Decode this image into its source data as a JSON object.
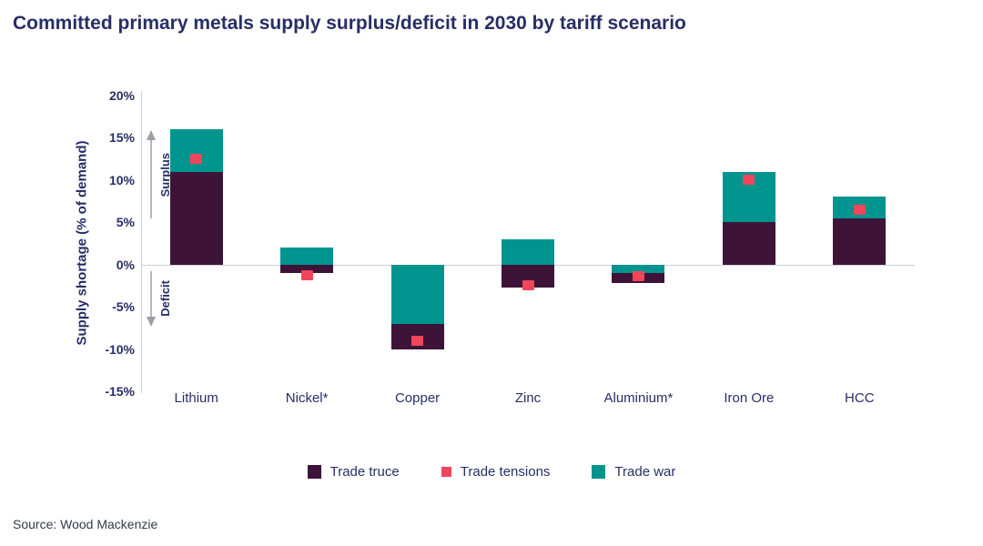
{
  "source_text": "Source: Wood Mackenzie",
  "colors": {
    "trade_truce": "#3d1438",
    "trade_tensions": "#f0465a",
    "trade_war": "#00948e",
    "title_text": "#272e66",
    "arrow_gray": "#9b9fa8"
  },
  "chart_data": {
    "type": "bar",
    "title": "Committed primary metals supply surplus/deficit in 2030 by tariff scenario",
    "ylabel": "Supply shortage (% of demand)",
    "ylim": [
      -15,
      20
    ],
    "yticks": [
      {
        "value": 20,
        "label": "20%"
      },
      {
        "value": 15,
        "label": "15%"
      },
      {
        "value": 10,
        "label": "10%"
      },
      {
        "value": 5,
        "label": "5%"
      },
      {
        "value": 0,
        "label": "0%"
      },
      {
        "value": -5,
        "label": "-5%"
      },
      {
        "value": -10,
        "label": "-10%"
      },
      {
        "value": -15,
        "label": "-15%"
      }
    ],
    "categories": [
      "Lithium",
      "Nickel*",
      "Copper",
      "Zinc",
      "Aluminium*",
      "Iron Ore",
      "HCC"
    ],
    "series": [
      {
        "name": "Trade truce",
        "color": "#3d1438",
        "style": "bar",
        "values": [
          11,
          -1,
          -10,
          -2.7,
          -2.2,
          5,
          5.5
        ]
      },
      {
        "name": "Trade tensions",
        "color": "#f0465a",
        "style": "marker",
        "values": [
          12.5,
          -1.3,
          -9,
          -2.5,
          -1.4,
          10,
          6.5
        ]
      },
      {
        "name": "Trade war",
        "color": "#00948e",
        "style": "bar",
        "values": [
          16,
          2,
          -7,
          3,
          -1,
          11,
          8
        ]
      }
    ],
    "annotations": {
      "surplus": "Surplus",
      "deficit": "Deficit"
    },
    "legend_position": "bottom",
    "grid": "zero-line-only"
  }
}
